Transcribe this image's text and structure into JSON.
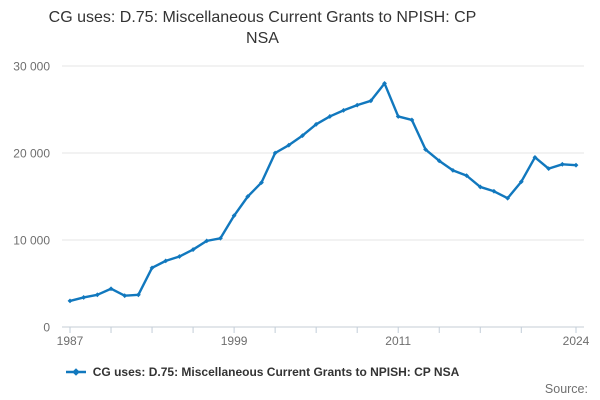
{
  "header": {
    "title_line1": "CG uses: D.75: Miscellaneous Current Grants to NPISH: CP",
    "title_line2": "NSA"
  },
  "legend": {
    "label": "CG uses: D.75: Miscellaneous Current Grants to NPISH: CP NSA"
  },
  "footer": {
    "source_label": "Source:"
  },
  "colors": {
    "line": "#1178be",
    "grid": "#e6e6e6",
    "axis_line": "#c6cdd4",
    "tick": "#c2cdd8",
    "axis_text": "#6e6e6e",
    "title_text": "#333333",
    "source_text": "#707070"
  },
  "chart_data": {
    "type": "line",
    "title": "CG uses: D.75: Miscellaneous Current Grants to NPISH: CP NSA",
    "xlabel": "",
    "ylabel": "",
    "xlim": [
      1987,
      2024
    ],
    "ylim": [
      0,
      30000
    ],
    "grid": "horizontal",
    "legend_position": "bottom",
    "x": [
      1987,
      1988,
      1989,
      1990,
      1991,
      1992,
      1993,
      1994,
      1995,
      1996,
      1997,
      1998,
      1999,
      2000,
      2001,
      2002,
      2003,
      2004,
      2005,
      2006,
      2007,
      2008,
      2009,
      2010,
      2011,
      2012,
      2013,
      2014,
      2015,
      2016,
      2017,
      2018,
      2019,
      2020,
      2021,
      2022,
      2023,
      2024
    ],
    "series": [
      {
        "name": "CG uses: D.75: Miscellaneous Current Grants to NPISH: CP NSA",
        "values": [
          3000,
          3400,
          3700,
          4400,
          3600,
          3700,
          6800,
          7600,
          8100,
          8900,
          9900,
          10200,
          12800,
          15000,
          16600,
          20000,
          20900,
          22000,
          23300,
          24200,
          24900,
          25500,
          26000,
          28000,
          24200,
          23800,
          20400,
          19100,
          18000,
          17400,
          16100,
          15600,
          14800,
          16700,
          19500,
          18200,
          18700,
          18600
        ]
      }
    ],
    "y_ticks": [
      {
        "value": 0,
        "label": "0"
      },
      {
        "value": 10000,
        "label": "10 000"
      },
      {
        "value": 20000,
        "label": "20 000"
      },
      {
        "value": 30000,
        "label": "30 000"
      }
    ],
    "x_ticks": [
      1987,
      1990,
      1993,
      1996,
      1999,
      2002,
      2005,
      2008,
      2011,
      2014,
      2017,
      2020,
      2024
    ],
    "x_tick_labels": [
      {
        "value": 1987,
        "label": "1987"
      },
      {
        "value": 1999,
        "label": "1999"
      },
      {
        "value": 2011,
        "label": "2011"
      },
      {
        "value": 2024,
        "label": "2024"
      }
    ]
  }
}
